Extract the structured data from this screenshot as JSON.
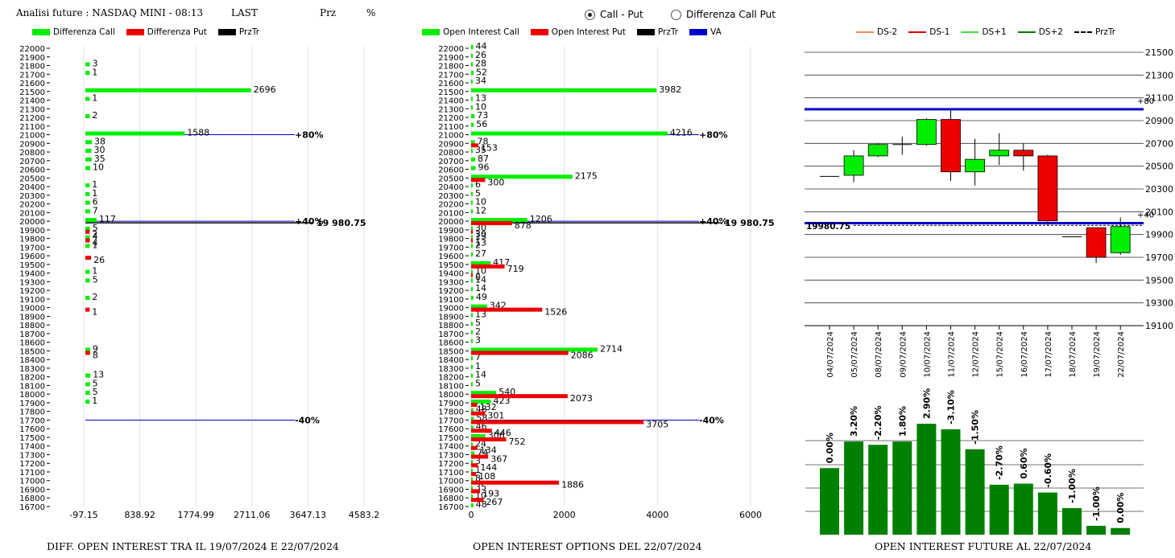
{
  "header": {
    "title": "Analisi future : NASDAQ MINI - 08:13",
    "last_label": "LAST",
    "prz_label": "Prz",
    "pct_label": "%"
  },
  "mode": {
    "options": [
      "Call - Put",
      "Differenza Call Put"
    ],
    "selected": "Call - Put"
  },
  "colors": {
    "call": "#00ee00",
    "put": "#ee0000",
    "prztr": "#000000",
    "va": "#0000cc",
    "candle_up": "#00ee00",
    "candle_down": "#ee0000",
    "oi_bar": "#008000",
    "ds_minus2": "#ee8855",
    "ds_minus1": "#dd0000",
    "ds_plus1": "#44dd44",
    "ds_plus2": "#007700"
  },
  "chart_data": [
    {
      "id": "diff_oi",
      "type": "bar",
      "orientation": "horizontal",
      "title": "DIFF. OPEN INTEREST TRA IL 19/07/2024 E 22/07/2024",
      "legend": [
        "Differenza Call",
        "Differenza Put",
        "PrzTr"
      ],
      "strikes_left_axis": [
        22000,
        21900,
        21800,
        21700,
        21600,
        21500,
        21400,
        21300,
        21200,
        21100,
        21000,
        20900,
        20800,
        20700,
        20600,
        20500,
        20400,
        20300,
        20200,
        20100,
        20000,
        19900,
        19800,
        19700,
        19600,
        19500,
        19400,
        19300,
        19200,
        19100,
        19000,
        18900,
        18800,
        18700,
        18600,
        18500,
        18400,
        18300,
        18200,
        18100,
        18000,
        17900,
        17800,
        17700,
        17600,
        17500,
        17400,
        17300,
        17200,
        17100,
        17000,
        16900,
        16800,
        16700
      ],
      "xticks": [
        "-97.15",
        "838.92",
        "1774.99",
        "2711.06",
        "3647.13",
        "4583.2"
      ],
      "xlim": [
        -97.15,
        4583.2
      ],
      "call_bars": [
        {
          "strike": 21800,
          "value": 3,
          "label": "3"
        },
        {
          "strike": 21700,
          "value": 1,
          "label": "1"
        },
        {
          "strike": 21500,
          "value": 2696,
          "label": "2696"
        },
        {
          "strike": 21400,
          "value": 1,
          "label": "1"
        },
        {
          "strike": 21200,
          "value": 2,
          "label": "2"
        },
        {
          "strike": 21000,
          "value": 1588,
          "label": "1588"
        },
        {
          "strike": 20900,
          "value": 38,
          "label": "38"
        },
        {
          "strike": 20800,
          "value": 30,
          "label": "30"
        },
        {
          "strike": 20700,
          "value": 35,
          "label": "35"
        },
        {
          "strike": 20600,
          "value": 10,
          "label": "10"
        },
        {
          "strike": 20400,
          "value": 1,
          "label": "1"
        },
        {
          "strike": 20300,
          "value": 1,
          "label": "1"
        },
        {
          "strike": 20200,
          "value": 6,
          "label": "6"
        },
        {
          "strike": 20100,
          "value": 7,
          "label": "7"
        },
        {
          "strike": 20000,
          "value": 117,
          "label": "117"
        },
        {
          "strike": 19900,
          "value": 5,
          "label": "5"
        },
        {
          "strike": 19800,
          "value": 4,
          "label": "4"
        },
        {
          "strike": 19700,
          "value": 1,
          "label": "1"
        },
        {
          "strike": 19400,
          "value": 1,
          "label": "1"
        },
        {
          "strike": 19300,
          "value": 5,
          "label": "5"
        },
        {
          "strike": 19100,
          "value": 2,
          "label": "2"
        },
        {
          "strike": 18500,
          "value": 9,
          "label": "9"
        },
        {
          "strike": 18200,
          "value": 13,
          "label": "13"
        },
        {
          "strike": 18100,
          "value": 5,
          "label": "5"
        },
        {
          "strike": 18000,
          "value": 5,
          "label": "5"
        },
        {
          "strike": 17900,
          "value": 1,
          "label": "1"
        }
      ],
      "put_bars": [
        {
          "strike": 19900,
          "value": 2,
          "label": "2"
        },
        {
          "strike": 19800,
          "value": 4,
          "label": "4"
        },
        {
          "strike": 19600,
          "value": 26,
          "label": "26"
        },
        {
          "strike": 19000,
          "value": 1,
          "label": "1"
        },
        {
          "strike": 18500,
          "value": 8,
          "label": "8"
        }
      ],
      "reference_lines": [
        {
          "strike": 21000,
          "label": "+80%"
        },
        {
          "strike": 20000,
          "label": "+40%"
        },
        {
          "strike": 17700,
          "label": "-40%"
        }
      ],
      "prztr": {
        "strike": 19980.75,
        "label": "19 980.75"
      }
    },
    {
      "id": "oi_options",
      "type": "bar",
      "orientation": "horizontal",
      "title": "OPEN INTEREST OPTIONS DEL 22/07/2024",
      "legend": [
        "Open Interest Call",
        "Open Interest Put",
        "PrzTr",
        "VA"
      ],
      "strikes_left_axis": [
        22000,
        21900,
        21800,
        21700,
        21600,
        21500,
        21400,
        21300,
        21200,
        21100,
        21000,
        20900,
        20800,
        20700,
        20600,
        20500,
        20400,
        20300,
        20200,
        20100,
        20000,
        19900,
        19800,
        19700,
        19600,
        19500,
        19400,
        19300,
        19200,
        19100,
        19000,
        18900,
        18800,
        18700,
        18600,
        18500,
        18400,
        18300,
        18200,
        18100,
        18000,
        17900,
        17800,
        17700,
        17600,
        17500,
        17400,
        17300,
        17200,
        17100,
        17000,
        16900,
        16800,
        16700
      ],
      "xticks": [
        "0",
        "2000",
        "4000",
        "6000"
      ],
      "xlim": [
        0,
        6000
      ],
      "call_bars": [
        {
          "strike": 22000,
          "value": 44,
          "label": "44"
        },
        {
          "strike": 21900,
          "value": 26,
          "label": "26"
        },
        {
          "strike": 21800,
          "value": 28,
          "label": "28"
        },
        {
          "strike": 21700,
          "value": 52,
          "label": "52"
        },
        {
          "strike": 21600,
          "value": 34,
          "label": "34"
        },
        {
          "strike": 21500,
          "value": 3982,
          "label": "3982"
        },
        {
          "strike": 21400,
          "value": 13,
          "label": "13"
        },
        {
          "strike": 21300,
          "value": 10,
          "label": "10"
        },
        {
          "strike": 21200,
          "value": 73,
          "label": "73"
        },
        {
          "strike": 21100,
          "value": 56,
          "label": "56"
        },
        {
          "strike": 21000,
          "value": 4216,
          "label": "4216"
        },
        {
          "strike": 20900,
          "value": 78,
          "label": "78"
        },
        {
          "strike": 20800,
          "value": 35,
          "label": "35"
        },
        {
          "strike": 20700,
          "value": 87,
          "label": "87"
        },
        {
          "strike": 20600,
          "value": 96,
          "label": "96"
        },
        {
          "strike": 20500,
          "value": 2175,
          "label": "2175"
        },
        {
          "strike": 20400,
          "value": 6,
          "label": "6"
        },
        {
          "strike": 20300,
          "value": 5,
          "label": "5"
        },
        {
          "strike": 20200,
          "value": 10,
          "label": "10"
        },
        {
          "strike": 20100,
          "value": 12,
          "label": "12"
        },
        {
          "strike": 20000,
          "value": 1206,
          "label": "1206"
        },
        {
          "strike": 19900,
          "value": 30,
          "label": "30"
        },
        {
          "strike": 19800,
          "value": 13,
          "label": "13"
        },
        {
          "strike": 19700,
          "value": 2,
          "label": "2"
        },
        {
          "strike": 19600,
          "value": 27,
          "label": "27"
        },
        {
          "strike": 19500,
          "value": 417,
          "label": "417"
        },
        {
          "strike": 19400,
          "value": 10,
          "label": "10"
        },
        {
          "strike": 19300,
          "value": 14,
          "label": "14"
        },
        {
          "strike": 19200,
          "value": 14,
          "label": "14"
        },
        {
          "strike": 19100,
          "value": 49,
          "label": "49"
        },
        {
          "strike": 19000,
          "value": 342,
          "label": "342"
        },
        {
          "strike": 18900,
          "value": 13,
          "label": "13"
        },
        {
          "strike": 18800,
          "value": 5,
          "label": "5"
        },
        {
          "strike": 18700,
          "value": 2,
          "label": "2"
        },
        {
          "strike": 18600,
          "value": 3,
          "label": "3"
        },
        {
          "strike": 18500,
          "value": 2714,
          "label": "2714"
        },
        {
          "strike": 18400,
          "value": 7,
          "label": "7"
        },
        {
          "strike": 18300,
          "value": 1,
          "label": "1"
        },
        {
          "strike": 18200,
          "value": 14,
          "label": "14"
        },
        {
          "strike": 18100,
          "value": 5,
          "label": "5"
        },
        {
          "strike": 18000,
          "value": 540,
          "label": "540"
        },
        {
          "strike": 17900,
          "value": 423,
          "label": "423"
        },
        {
          "strike": 17800,
          "value": 48,
          "label": "48"
        },
        {
          "strike": 17700,
          "value": 58,
          "label": "58"
        },
        {
          "strike": 17600,
          "value": 46,
          "label": "46"
        },
        {
          "strike": 17500,
          "value": 306,
          "label": "306"
        },
        {
          "strike": 17400,
          "value": 24,
          "label": "24"
        },
        {
          "strike": 17300,
          "value": 74,
          "label": "74"
        },
        {
          "strike": 17200,
          "value": 3,
          "label": "3"
        },
        {
          "strike": 17100,
          "value": 1,
          "label": "1"
        },
        {
          "strike": 17000,
          "value": 8,
          "label": "8"
        },
        {
          "strike": 16900,
          "value": 35,
          "label": "35"
        },
        {
          "strike": 16800,
          "value": 10,
          "label": "10"
        },
        {
          "strike": 16700,
          "value": 48,
          "label": "48"
        }
      ],
      "put_bars": [
        {
          "strike": 20900,
          "value": 153,
          "label": "153"
        },
        {
          "strike": 20500,
          "value": 300,
          "label": "300"
        },
        {
          "strike": 20000,
          "value": 878,
          "label": "878"
        },
        {
          "strike": 19900,
          "value": 30,
          "label": "30"
        },
        {
          "strike": 19800,
          "value": 13,
          "label": "13"
        },
        {
          "strike": 19500,
          "value": 719,
          "label": "719"
        },
        {
          "strike": 19400,
          "value": 0,
          "label": "0"
        },
        {
          "strike": 19000,
          "value": 1526,
          "label": "1526"
        },
        {
          "strike": 18500,
          "value": 2086,
          "label": "2086"
        },
        {
          "strike": 18000,
          "value": 2073,
          "label": "2073"
        },
        {
          "strike": 17900,
          "value": 132,
          "label": "132"
        },
        {
          "strike": 17800,
          "value": 301,
          "label": "301"
        },
        {
          "strike": 17700,
          "value": 3705,
          "label": "3705"
        },
        {
          "strike": 17600,
          "value": 446,
          "label": "446"
        },
        {
          "strike": 17500,
          "value": 752,
          "label": "752"
        },
        {
          "strike": 17400,
          "value": 134,
          "label": "134"
        },
        {
          "strike": 17300,
          "value": 367,
          "label": "367"
        },
        {
          "strike": 17200,
          "value": 144,
          "label": "144"
        },
        {
          "strike": 17100,
          "value": 108,
          "label": "108"
        },
        {
          "strike": 17000,
          "value": 1886,
          "label": "1886"
        },
        {
          "strike": 16900,
          "value": 193,
          "label": "193"
        },
        {
          "strike": 16800,
          "value": 267,
          "label": "267"
        }
      ],
      "reference_lines": [
        {
          "strike": 21000,
          "label": "+80%"
        },
        {
          "strike": 20000,
          "label": "+40%"
        },
        {
          "strike": 17700,
          "label": "-40%"
        }
      ],
      "prztr": {
        "strike": 19980.75,
        "label": "19 980.75"
      }
    },
    {
      "id": "candles",
      "type": "candlestick",
      "legend": [
        "DS-2",
        "DS-1",
        "DS+1",
        "DS+2",
        "PrzTr"
      ],
      "yticks": [
        21500,
        21300,
        21100,
        20900,
        20700,
        20500,
        20300,
        20100,
        19900,
        19700,
        19500,
        19300,
        19100
      ],
      "ylim": [
        19100,
        21550
      ],
      "dates": [
        "04/07/2024",
        "05/07/2024",
        "08/07/2024",
        "09/07/2024",
        "10/07/2024",
        "11/07/2024",
        "12/07/2024",
        "15/07/2024",
        "16/07/2024",
        "17/07/2024",
        "18/07/2024",
        "19/07/2024",
        "22/07/2024"
      ],
      "candles": [
        {
          "date": "04/07/2024",
          "open": 20410,
          "close": 20410,
          "high": 20410,
          "low": 20410
        },
        {
          "date": "05/07/2024",
          "open": 20420,
          "close": 20590,
          "high": 20640,
          "low": 20360
        },
        {
          "date": "08/07/2024",
          "open": 20590,
          "close": 20690,
          "high": 20700,
          "low": 20580
        },
        {
          "date": "09/07/2024",
          "open": 20690,
          "close": 20690,
          "high": 20760,
          "low": 20600
        },
        {
          "date": "10/07/2024",
          "open": 20690,
          "close": 20910,
          "high": 20920,
          "low": 20680
        },
        {
          "date": "11/07/2024",
          "open": 20910,
          "close": 20450,
          "high": 20990,
          "low": 20370
        },
        {
          "date": "12/07/2024",
          "open": 20450,
          "close": 20560,
          "high": 20740,
          "low": 20330
        },
        {
          "date": "15/07/2024",
          "open": 20590,
          "close": 20640,
          "high": 20790,
          "low": 20510
        },
        {
          "date": "16/07/2024",
          "open": 20640,
          "close": 20590,
          "high": 20700,
          "low": 20460
        },
        {
          "date": "17/07/2024",
          "open": 20590,
          "close": 20020,
          "high": 20600,
          "low": 19980
        },
        {
          "date": "18/07/2024",
          "open": 19880,
          "close": 19880,
          "high": 19880,
          "low": 19880
        },
        {
          "date": "19/07/2024",
          "open": 19960,
          "close": 19700,
          "high": 19960,
          "low": 19650
        },
        {
          "date": "22/07/2024",
          "open": 19740,
          "close": 19970,
          "high": 20050,
          "low": 19720
        }
      ],
      "va_lines": [
        {
          "value": 21000,
          "label": "+80"
        },
        {
          "value": 20000,
          "label": "+40"
        }
      ],
      "prztr": {
        "value": 19980.75,
        "label": "19980.75"
      }
    },
    {
      "id": "oi_future",
      "type": "bar",
      "title": "OPEN INTEREST FUTURE AL 22/07/2024",
      "categories": [
        "04/07/2024",
        "05/07/2024",
        "08/07/2024",
        "09/07/2024",
        "10/07/2024",
        "11/07/2024",
        "12/07/2024",
        "15/07/2024",
        "16/07/2024",
        "17/07/2024",
        "18/07/2024",
        "19/07/2024",
        "22/07/2024"
      ],
      "values": [
        60,
        84,
        81,
        84,
        100,
        95,
        77,
        45,
        46,
        38,
        24,
        8,
        6
      ],
      "labels": [
        "0.00%",
        "3.20%",
        "-2.20%",
        "1.80%",
        "2.90%",
        "-3.10%",
        "-1.50%",
        "-2.70%",
        "0.60%",
        "-0.60%",
        "-1.00%",
        "-1.00%",
        "0.00%"
      ],
      "ylim": [
        0,
        100
      ]
    }
  ]
}
